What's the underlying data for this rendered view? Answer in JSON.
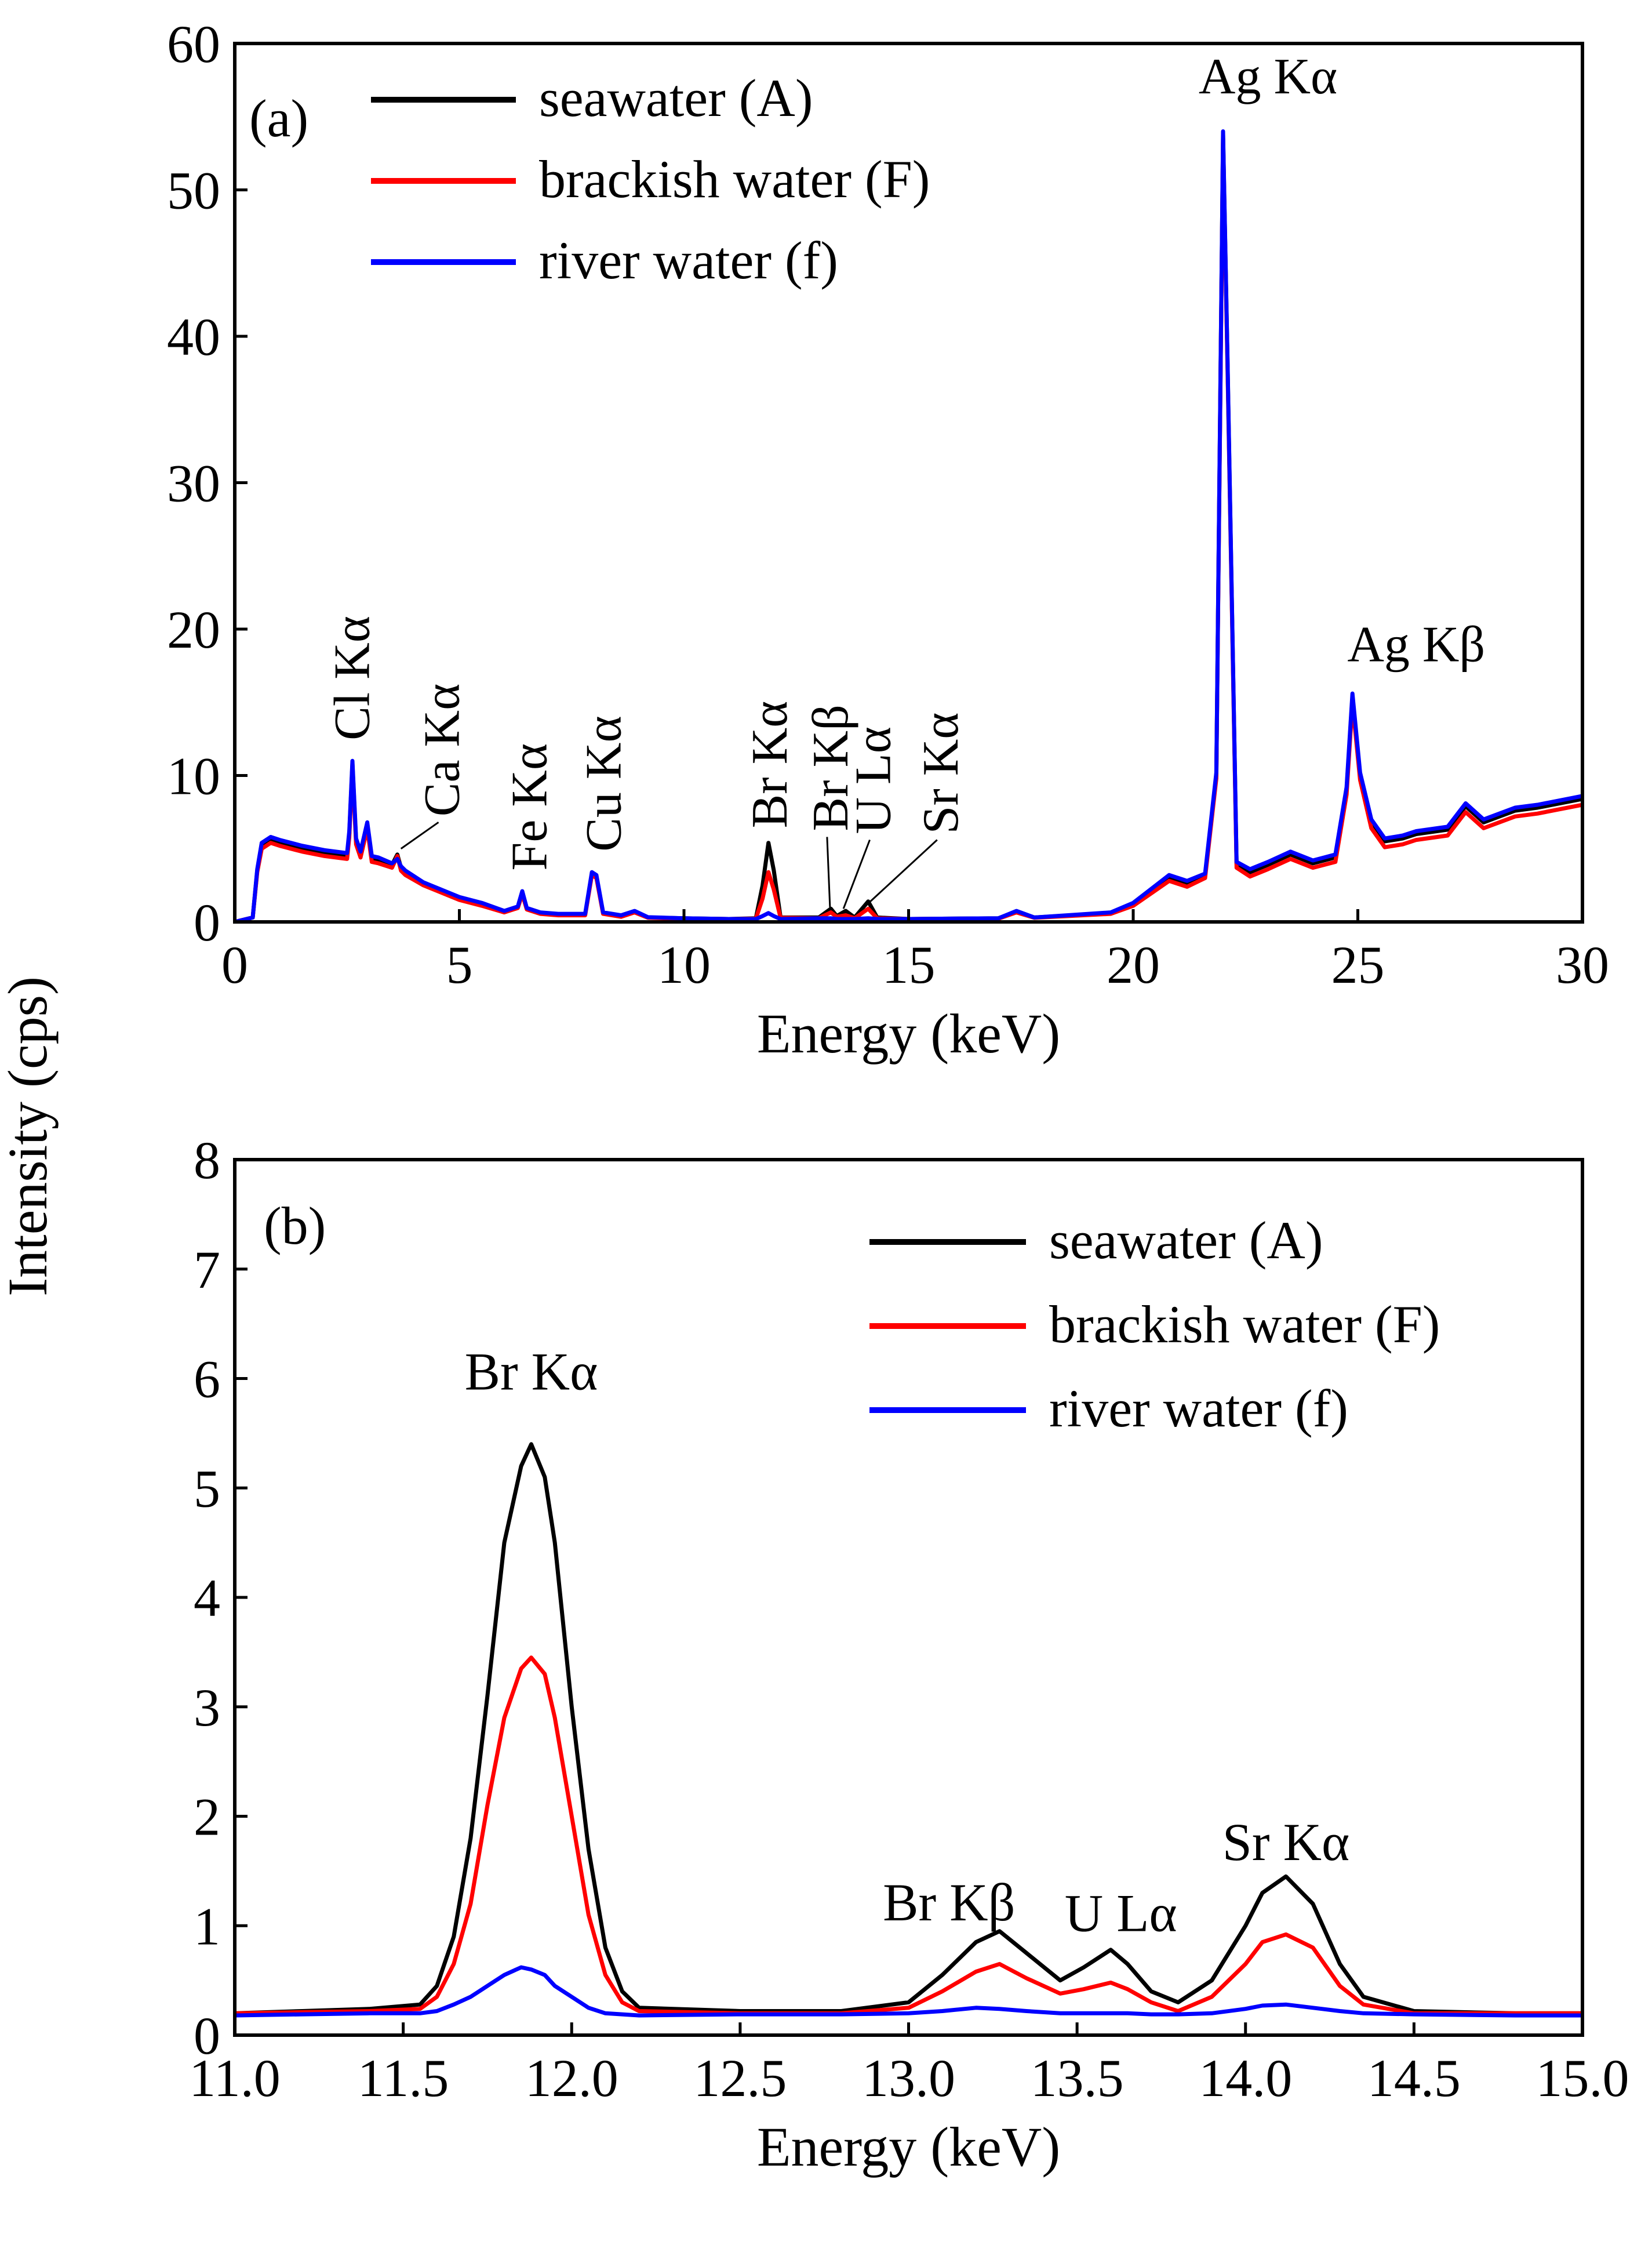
{
  "figure": {
    "ylabel": "Intensity (cps)"
  },
  "chart_data": [
    {
      "type": "line",
      "panel_label": "(a)",
      "xlabel": "Energy (keV)",
      "xlim": [
        0,
        30
      ],
      "ylim": [
        0,
        60
      ],
      "xticks": [
        0,
        5,
        10,
        15,
        20,
        25,
        30
      ],
      "xtick_labels": [
        "0",
        "5",
        "10",
        "15",
        "20",
        "25",
        "30"
      ],
      "yticks": [
        0,
        10,
        20,
        30,
        40,
        50,
        60
      ],
      "ytick_labels": [
        "0",
        "10",
        "20",
        "30",
        "40",
        "50",
        "60"
      ],
      "legend_position": "top-left",
      "series": [
        {
          "name": "seawater (A)",
          "color": "#000000",
          "x": [
            0,
            0.4,
            0.5,
            0.6,
            0.8,
            1.0,
            1.5,
            2.0,
            2.5,
            2.55,
            2.62,
            2.7,
            2.8,
            2.95,
            3.05,
            3.2,
            3.5,
            3.62,
            3.7,
            3.8,
            4.2,
            5.0,
            5.5,
            6.0,
            6.3,
            6.4,
            6.5,
            6.8,
            7.2,
            7.8,
            7.95,
            8.05,
            8.2,
            8.6,
            8.9,
            9.2,
            10.0,
            11.0,
            11.6,
            11.75,
            11.88,
            12.0,
            12.15,
            13.0,
            13.27,
            13.4,
            13.6,
            13.8,
            14.1,
            14.3,
            15.0,
            17.0,
            17.4,
            17.8,
            19.5,
            20.0,
            20.8,
            21.2,
            21.6,
            21.85,
            22.0,
            22.1,
            22.3,
            22.6,
            23.0,
            23.5,
            24.0,
            24.5,
            24.75,
            24.88,
            25.05,
            25.3,
            25.6,
            26.0,
            26.3,
            27.0,
            27.4,
            27.8,
            28.5,
            29.0,
            29.5,
            30.0
          ],
          "y": [
            0,
            0.3,
            3.5,
            5.2,
            5.6,
            5.4,
            5.0,
            4.7,
            4.5,
            6.0,
            10.8,
            5.5,
            4.6,
            6.6,
            4.3,
            4.2,
            3.9,
            4.6,
            3.7,
            3.4,
            2.6,
            1.6,
            1.2,
            0.7,
            1.0,
            2.0,
            0.9,
            0.6,
            0.5,
            0.5,
            3.3,
            3.1,
            0.6,
            0.4,
            0.7,
            0.3,
            0.25,
            0.2,
            0.25,
            2.5,
            5.4,
            3.5,
            0.3,
            0.3,
            0.9,
            0.4,
            0.75,
            0.3,
            1.4,
            0.3,
            0.2,
            0.25,
            0.7,
            0.3,
            0.6,
            1.2,
            3.0,
            2.6,
            3.2,
            10.0,
            53.8,
            38.0,
            4.0,
            3.4,
            3.9,
            4.6,
            4.0,
            4.4,
            9.0,
            15.4,
            10.0,
            6.8,
            5.5,
            5.7,
            6.0,
            6.3,
            7.9,
            6.8,
            7.6,
            7.8,
            8.1,
            8.4
          ]
        },
        {
          "name": "brackish water (F)",
          "color": "#ff0000",
          "x": [
            0,
            0.4,
            0.5,
            0.6,
            0.8,
            1.0,
            1.5,
            2.0,
            2.5,
            2.55,
            2.62,
            2.7,
            2.8,
            2.95,
            3.05,
            3.2,
            3.5,
            3.62,
            3.7,
            3.8,
            4.2,
            5.0,
            5.5,
            6.0,
            6.3,
            6.4,
            6.5,
            6.8,
            7.2,
            7.8,
            7.95,
            8.05,
            8.2,
            8.6,
            8.9,
            9.2,
            10.0,
            11.0,
            11.6,
            11.75,
            11.88,
            12.0,
            12.15,
            13.0,
            13.27,
            13.4,
            13.6,
            13.8,
            14.1,
            14.3,
            15.0,
            17.0,
            17.4,
            17.8,
            19.5,
            20.0,
            20.8,
            21.2,
            21.6,
            21.85,
            22.0,
            22.1,
            22.3,
            22.6,
            23.0,
            23.5,
            24.0,
            24.5,
            24.75,
            24.88,
            25.05,
            25.3,
            25.6,
            26.0,
            26.3,
            27.0,
            27.4,
            27.8,
            28.5,
            29.0,
            29.5,
            30.0
          ],
          "y": [
            0,
            0.3,
            3.4,
            5.0,
            5.4,
            5.2,
            4.8,
            4.5,
            4.3,
            5.8,
            10.6,
            5.3,
            4.4,
            6.4,
            4.1,
            4.0,
            3.7,
            4.5,
            3.5,
            3.2,
            2.5,
            1.5,
            1.1,
            0.65,
            0.95,
            1.9,
            0.85,
            0.55,
            0.45,
            0.45,
            3.2,
            3.0,
            0.55,
            0.35,
            0.65,
            0.28,
            0.22,
            0.2,
            0.22,
            1.6,
            3.4,
            2.2,
            0.28,
            0.25,
            0.65,
            0.35,
            0.45,
            0.25,
            0.9,
            0.25,
            0.2,
            0.22,
            0.65,
            0.28,
            0.55,
            1.1,
            2.8,
            2.4,
            3.0,
            9.8,
            53.5,
            37.6,
            3.7,
            3.1,
            3.6,
            4.3,
            3.7,
            4.1,
            8.7,
            15.0,
            9.7,
            6.4,
            5.1,
            5.3,
            5.6,
            5.9,
            7.5,
            6.4,
            7.2,
            7.4,
            7.7,
            8.0
          ]
        },
        {
          "name": "river water (f)",
          "color": "#0000ff",
          "x": [
            0,
            0.4,
            0.5,
            0.6,
            0.8,
            1.0,
            1.5,
            2.0,
            2.5,
            2.55,
            2.62,
            2.7,
            2.8,
            2.95,
            3.05,
            3.2,
            3.5,
            3.62,
            3.7,
            3.8,
            4.2,
            5.0,
            5.5,
            6.0,
            6.3,
            6.4,
            6.5,
            6.8,
            7.2,
            7.8,
            7.95,
            8.05,
            8.2,
            8.6,
            8.9,
            9.2,
            10.0,
            11.0,
            11.6,
            11.75,
            11.88,
            12.0,
            12.15,
            13.0,
            13.27,
            13.4,
            13.6,
            13.8,
            14.1,
            14.3,
            15.0,
            17.0,
            17.4,
            17.8,
            19.5,
            20.0,
            20.8,
            21.2,
            21.6,
            21.85,
            22.0,
            22.1,
            22.3,
            22.6,
            23.0,
            23.5,
            24.0,
            24.5,
            24.75,
            24.88,
            25.05,
            25.3,
            25.6,
            26.0,
            26.3,
            27.0,
            27.4,
            27.8,
            28.5,
            29.0,
            29.5,
            30.0
          ],
          "y": [
            0,
            0.3,
            3.6,
            5.4,
            5.8,
            5.6,
            5.2,
            4.9,
            4.7,
            6.2,
            11.0,
            5.7,
            4.8,
            6.8,
            4.5,
            4.4,
            4.0,
            4.3,
            3.8,
            3.5,
            2.7,
            1.7,
            1.3,
            0.75,
            1.05,
            2.1,
            0.95,
            0.65,
            0.55,
            0.55,
            3.4,
            3.2,
            0.65,
            0.45,
            0.75,
            0.32,
            0.25,
            0.2,
            0.2,
            0.4,
            0.6,
            0.4,
            0.2,
            0.25,
            0.25,
            0.2,
            0.2,
            0.2,
            0.25,
            0.2,
            0.2,
            0.25,
            0.75,
            0.3,
            0.65,
            1.3,
            3.2,
            2.8,
            3.3,
            10.2,
            54.0,
            38.2,
            4.1,
            3.6,
            4.1,
            4.8,
            4.2,
            4.6,
            9.2,
            15.6,
            10.2,
            7.0,
            5.7,
            5.9,
            6.2,
            6.5,
            8.1,
            7.0,
            7.8,
            8.0,
            8.3,
            8.6
          ]
        }
      ],
      "annotations": [
        {
          "text": "Cl Kα",
          "x": 2.6,
          "y": 12.4,
          "rotated": true
        },
        {
          "text": "Ca Kα",
          "x": 4.6,
          "y": 7.2,
          "rotated": true,
          "pointer": [
            3.7,
            5.0
          ]
        },
        {
          "text": "Fe Kα",
          "x": 6.55,
          "y": 3.5,
          "rotated": true
        },
        {
          "text": "Cu Kα",
          "x": 8.2,
          "y": 4.8,
          "rotated": true
        },
        {
          "text": "Br Kα",
          "x": 11.9,
          "y": 6.4,
          "rotated": true
        },
        {
          "text": "Br Kβ",
          "x": 13.25,
          "y": 6.2,
          "rotated": true,
          "pointer": [
            13.25,
            1.0
          ]
        },
        {
          "text": "U Lα",
          "x": 14.2,
          "y": 6.0,
          "rotated": true,
          "pointer": [
            13.55,
            0.9
          ]
        },
        {
          "text": "Sr Kα",
          "x": 15.7,
          "y": 6.0,
          "rotated": true,
          "pointer": [
            14.15,
            1.4
          ]
        },
        {
          "text": "Ag Kα",
          "x": 23.0,
          "y": 56.6,
          "rotated": false
        },
        {
          "text": "Ag Kβ",
          "x": 26.3,
          "y": 17.8,
          "rotated": false
        }
      ]
    },
    {
      "type": "line",
      "panel_label": "(b)",
      "xlabel": "Energy (keV)",
      "xlim": [
        11.0,
        15.0
      ],
      "ylim": [
        0,
        8
      ],
      "xticks": [
        11.0,
        11.5,
        12.0,
        12.5,
        13.0,
        13.5,
        14.0,
        14.5,
        15.0
      ],
      "xtick_labels": [
        "11.0",
        "11.5",
        "12.0",
        "12.5",
        "13.0",
        "13.5",
        "14.0",
        "14.5",
        "15.0"
      ],
      "yticks": [
        0,
        1,
        2,
        3,
        4,
        5,
        6,
        7,
        8
      ],
      "ytick_labels": [
        "0",
        "1",
        "2",
        "3",
        "4",
        "5",
        "6",
        "7",
        "8"
      ],
      "legend_position": "top-right",
      "series": [
        {
          "name": "seawater (A)",
          "color": "#000000",
          "x": [
            11.0,
            11.2,
            11.4,
            11.55,
            11.6,
            11.65,
            11.7,
            11.75,
            11.8,
            11.85,
            11.88,
            11.92,
            11.95,
            12.0,
            12.05,
            12.1,
            12.15,
            12.2,
            12.5,
            12.8,
            13.0,
            13.1,
            13.2,
            13.27,
            13.35,
            13.45,
            13.52,
            13.6,
            13.65,
            13.72,
            13.8,
            13.9,
            14.0,
            14.05,
            14.12,
            14.2,
            14.28,
            14.35,
            14.5,
            14.8,
            15.0
          ],
          "y": [
            0.2,
            0.22,
            0.24,
            0.28,
            0.45,
            0.9,
            1.8,
            3.1,
            4.5,
            5.2,
            5.4,
            5.1,
            4.5,
            3.0,
            1.7,
            0.8,
            0.4,
            0.25,
            0.22,
            0.22,
            0.3,
            0.55,
            0.85,
            0.95,
            0.75,
            0.5,
            0.62,
            0.78,
            0.65,
            0.4,
            0.3,
            0.5,
            1.0,
            1.3,
            1.45,
            1.2,
            0.65,
            0.35,
            0.22,
            0.2,
            0.2
          ]
        },
        {
          "name": "brackish water (F)",
          "color": "#ff0000",
          "x": [
            11.0,
            11.2,
            11.4,
            11.55,
            11.6,
            11.65,
            11.7,
            11.75,
            11.8,
            11.85,
            11.88,
            11.92,
            11.95,
            12.0,
            12.05,
            12.1,
            12.15,
            12.2,
            12.5,
            12.8,
            13.0,
            13.1,
            13.2,
            13.27,
            13.35,
            13.45,
            13.52,
            13.6,
            13.65,
            13.72,
            13.8,
            13.9,
            14.0,
            14.05,
            14.12,
            14.2,
            14.28,
            14.35,
            14.5,
            14.8,
            15.0
          ],
          "y": [
            0.2,
            0.21,
            0.22,
            0.24,
            0.35,
            0.65,
            1.2,
            2.1,
            2.9,
            3.35,
            3.45,
            3.3,
            2.9,
            2.0,
            1.1,
            0.55,
            0.3,
            0.22,
            0.2,
            0.2,
            0.25,
            0.4,
            0.58,
            0.65,
            0.52,
            0.38,
            0.42,
            0.48,
            0.42,
            0.3,
            0.22,
            0.35,
            0.65,
            0.85,
            0.92,
            0.8,
            0.45,
            0.28,
            0.2,
            0.2,
            0.2
          ]
        },
        {
          "name": "river water (f)",
          "color": "#0000ff",
          "x": [
            11.0,
            11.2,
            11.4,
            11.55,
            11.6,
            11.65,
            11.7,
            11.75,
            11.8,
            11.85,
            11.88,
            11.92,
            11.95,
            12.0,
            12.05,
            12.1,
            12.15,
            12.2,
            12.5,
            12.8,
            13.0,
            13.1,
            13.2,
            13.27,
            13.35,
            13.45,
            13.52,
            13.6,
            13.65,
            13.72,
            13.8,
            13.9,
            14.0,
            14.05,
            14.12,
            14.2,
            14.28,
            14.35,
            14.5,
            14.8,
            15.0
          ],
          "y": [
            0.18,
            0.19,
            0.2,
            0.2,
            0.22,
            0.28,
            0.35,
            0.45,
            0.55,
            0.62,
            0.6,
            0.55,
            0.45,
            0.35,
            0.25,
            0.2,
            0.19,
            0.18,
            0.19,
            0.19,
            0.2,
            0.22,
            0.25,
            0.24,
            0.22,
            0.2,
            0.2,
            0.2,
            0.2,
            0.19,
            0.19,
            0.2,
            0.24,
            0.27,
            0.28,
            0.25,
            0.22,
            0.2,
            0.19,
            0.18,
            0.18
          ]
        }
      ],
      "annotations": [
        {
          "text": "Br Kα",
          "x": 11.88,
          "y": 5.9,
          "rotated": false
        },
        {
          "text": "Br Kβ",
          "x": 13.12,
          "y": 1.05,
          "rotated": false
        },
        {
          "text": "U Lα",
          "x": 13.63,
          "y": 0.95,
          "rotated": false
        },
        {
          "text": "Sr Kα",
          "x": 14.12,
          "y": 1.6,
          "rotated": false
        }
      ]
    }
  ]
}
